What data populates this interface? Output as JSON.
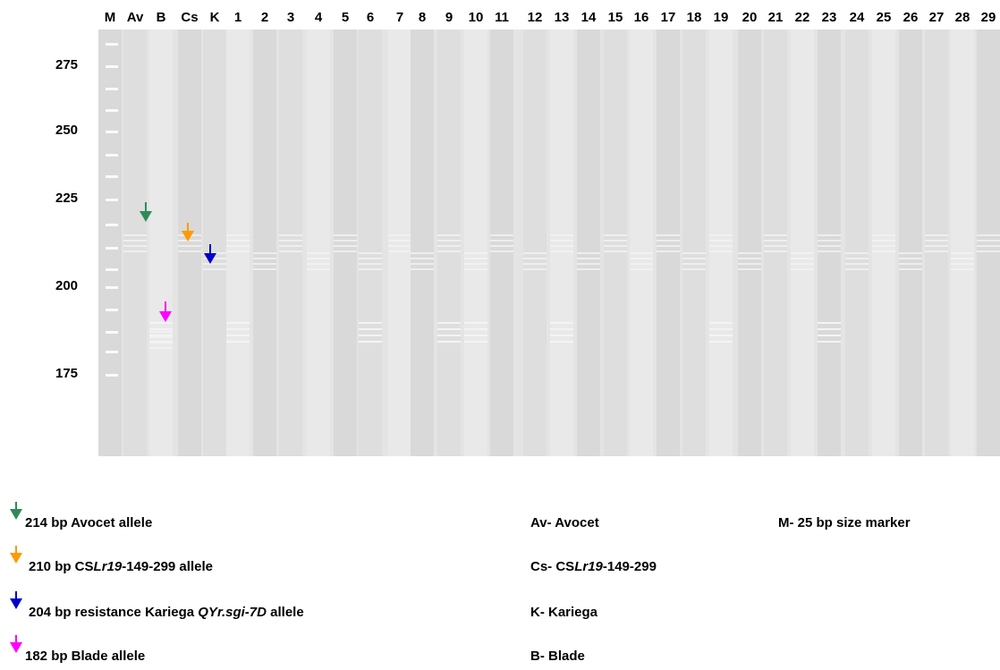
{
  "lanes": [
    "M",
    "Av",
    "B",
    "Cs",
    "K",
    "1",
    "2",
    "3",
    "4",
    "5",
    "6",
    "7",
    "8",
    "9",
    "10",
    "11",
    "12",
    "13",
    "14",
    "15",
    "16",
    "17",
    "18",
    "19",
    "20",
    "21",
    "22",
    "23",
    "24",
    "25",
    "26",
    "27",
    "28",
    "29"
  ],
  "size_markers": [
    "275",
    "250",
    "225",
    "200",
    "175"
  ],
  "legend": [
    {
      "color": "#2e8b57",
      "text": [
        "214 bp Avocet allele"
      ]
    },
    {
      "color": "#ff9900",
      "text": [
        "210 bp  CS",
        "Lr19",
        "-149-299  allele"
      ]
    },
    {
      "color": "#0000cc",
      "text": [
        "204 bp resistance Kariega ",
        "QYr.sgi-7D",
        " allele"
      ]
    },
    {
      "color": "#ff00ff",
      "text": [
        "182 bp Blade allele"
      ]
    }
  ],
  "key": [
    [
      "Av- Avocet"
    ],
    [
      "Cs- CS",
      "Lr19",
      "-149-299"
    ],
    [
      "K- Kariega"
    ],
    [
      "B- Blade"
    ]
  ],
  "marker_note": "M- 25 bp size marker"
}
